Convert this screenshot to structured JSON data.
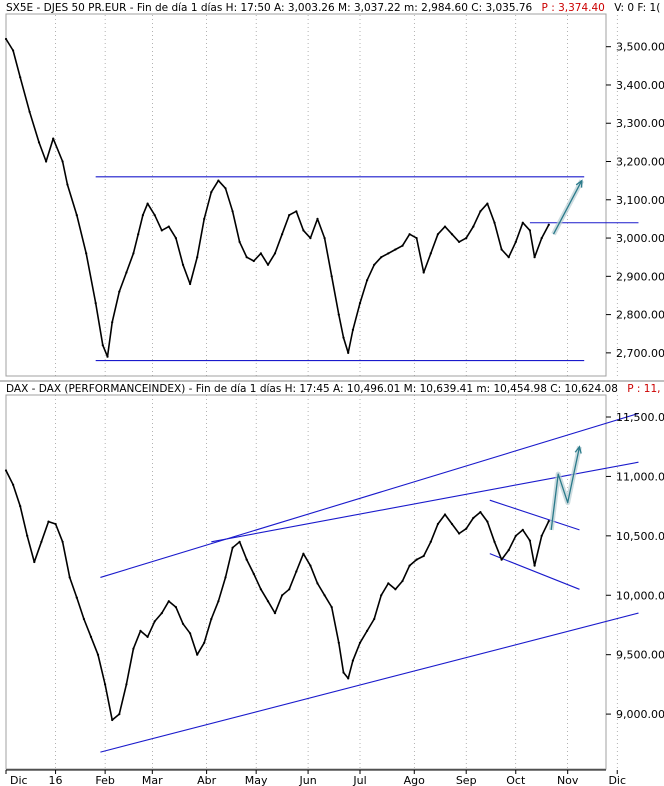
{
  "colors": {
    "background": "#ffffff",
    "price": "#000000",
    "trendline": "#1a1acc",
    "projection": "#2a7a8a",
    "last_price": "#cc0000",
    "grid": "#808080"
  },
  "chart_data": [
    {
      "type": "line",
      "header": {
        "text": "SX5E - DJES 50 PR.EUR - Fin de día 1 días  H: 17:50  A: 3,003.26  M: 3,037.22  m: 2,984.60  C: 3,035.76",
        "last": "P : 3,374.40",
        "tail": "V: 0   F: 1("
      },
      "ylim": [
        2650,
        3575
      ],
      "yticks": [
        2700,
        2800,
        2900,
        3000,
        3100,
        3200,
        3300,
        3400,
        3500
      ],
      "ytick_labels": [
        "2,700.00",
        "2,800.00",
        "2,900.00",
        "3,000.00",
        "3,100.00",
        "3,200.00",
        "3,300.00",
        "3,400.00",
        "3,500.00"
      ],
      "grid": "vertical dotted at month boundaries",
      "series": [
        {
          "points": [
            [
              0,
              3520
            ],
            [
              3,
              3490
            ],
            [
              6,
              3420
            ],
            [
              10,
              3330
            ],
            [
              14,
              3250
            ],
            [
              17,
              3200
            ],
            [
              20,
              3260
            ],
            [
              24,
              3200
            ],
            [
              26,
              3140
            ],
            [
              30,
              3060
            ],
            [
              34,
              2960
            ],
            [
              38,
              2830
            ],
            [
              41,
              2720
            ],
            [
              43,
              2690
            ],
            [
              45,
              2780
            ],
            [
              48,
              2860
            ],
            [
              51,
              2910
            ],
            [
              54,
              2960
            ],
            [
              56,
              3010
            ],
            [
              58,
              3060
            ],
            [
              60,
              3090
            ],
            [
              63,
              3060
            ],
            [
              66,
              3020
            ],
            [
              69,
              3030
            ],
            [
              72,
              3000
            ],
            [
              75,
              2930
            ],
            [
              78,
              2880
            ],
            [
              81,
              2950
            ],
            [
              84,
              3050
            ],
            [
              87,
              3120
            ],
            [
              90,
              3150
            ],
            [
              93,
              3130
            ],
            [
              96,
              3070
            ],
            [
              99,
              2990
            ],
            [
              102,
              2950
            ],
            [
              105,
              2940
            ],
            [
              108,
              2960
            ],
            [
              111,
              2930
            ],
            [
              114,
              2960
            ],
            [
              117,
              3010
            ],
            [
              120,
              3060
            ],
            [
              123,
              3070
            ],
            [
              126,
              3020
            ],
            [
              129,
              3000
            ],
            [
              132,
              3050
            ],
            [
              135,
              3000
            ],
            [
              138,
              2900
            ],
            [
              141,
              2800
            ],
            [
              143,
              2740
            ],
            [
              145,
              2700
            ],
            [
              147,
              2760
            ],
            [
              150,
              2830
            ],
            [
              153,
              2890
            ],
            [
              156,
              2930
            ],
            [
              159,
              2950
            ],
            [
              162,
              2960
            ],
            [
              165,
              2970
            ],
            [
              168,
              2980
            ],
            [
              171,
              3010
            ],
            [
              174,
              3000
            ],
            [
              177,
              2910
            ],
            [
              180,
              2960
            ],
            [
              183,
              3010
            ],
            [
              186,
              3030
            ],
            [
              189,
              3010
            ],
            [
              192,
              2990
            ],
            [
              195,
              3000
            ],
            [
              198,
              3030
            ],
            [
              201,
              3070
            ],
            [
              204,
              3090
            ],
            [
              207,
              3040
            ],
            [
              210,
              2970
            ],
            [
              213,
              2950
            ],
            [
              216,
              2990
            ],
            [
              219,
              3040
            ],
            [
              222,
              3020
            ],
            [
              224,
              2950
            ],
            [
              227,
              3000
            ],
            [
              230,
              3035
            ]
          ]
        }
      ],
      "trendlines": [
        {
          "name": "resistance",
          "from": [
            38,
            3160
          ],
          "to": [
            245,
            3160
          ]
        },
        {
          "name": "support",
          "from": [
            38,
            2680
          ],
          "to": [
            245,
            2680
          ]
        },
        {
          "name": "pivot",
          "from": [
            222,
            3040
          ],
          "to": [
            268,
            3040
          ]
        }
      ],
      "projection": {
        "from": [
          232,
          3010
        ],
        "to": [
          244,
          3150
        ]
      }
    },
    {
      "type": "line",
      "header": {
        "text": "DAX - DAX (PERFORMANCEINDEX) - Fin de día 1 días  H: 17:45  A: 10,496.01  M: 10,639.41  m: 10,454.98  C: 10,624.08",
        "last": "P : 11,"
      },
      "ylim": [
        8580,
        11660
      ],
      "yticks": [
        9000,
        9500,
        10000,
        10500,
        11000,
        11500
      ],
      "ytick_labels": [
        "9,000.00",
        "9,500.00",
        "10,000.00",
        "10,500.00",
        "11,000.00",
        "11,500.00"
      ],
      "grid": "vertical dotted at month boundaries",
      "series": [
        {
          "points": [
            [
              0,
              11050
            ],
            [
              3,
              10930
            ],
            [
              6,
              10750
            ],
            [
              9,
              10500
            ],
            [
              12,
              10280
            ],
            [
              15,
              10450
            ],
            [
              18,
              10620
            ],
            [
              21,
              10600
            ],
            [
              24,
              10450
            ],
            [
              27,
              10150
            ],
            [
              30,
              9980
            ],
            [
              33,
              9800
            ],
            [
              36,
              9650
            ],
            [
              39,
              9500
            ],
            [
              42,
              9250
            ],
            [
              45,
              8950
            ],
            [
              48,
              9000
            ],
            [
              51,
              9250
            ],
            [
              54,
              9550
            ],
            [
              57,
              9700
            ],
            [
              60,
              9650
            ],
            [
              63,
              9780
            ],
            [
              66,
              9850
            ],
            [
              69,
              9950
            ],
            [
              72,
              9900
            ],
            [
              75,
              9760
            ],
            [
              78,
              9680
            ],
            [
              81,
              9500
            ],
            [
              84,
              9600
            ],
            [
              87,
              9800
            ],
            [
              90,
              9950
            ],
            [
              93,
              10150
            ],
            [
              96,
              10400
            ],
            [
              99,
              10450
            ],
            [
              102,
              10300
            ],
            [
              105,
              10180
            ],
            [
              108,
              10050
            ],
            [
              111,
              9950
            ],
            [
              114,
              9850
            ],
            [
              117,
              10000
            ],
            [
              120,
              10050
            ],
            [
              123,
              10200
            ],
            [
              126,
              10350
            ],
            [
              129,
              10250
            ],
            [
              132,
              10100
            ],
            [
              135,
              10000
            ],
            [
              138,
              9900
            ],
            [
              141,
              9600
            ],
            [
              143,
              9350
            ],
            [
              145,
              9300
            ],
            [
              147,
              9450
            ],
            [
              150,
              9600
            ],
            [
              153,
              9700
            ],
            [
              156,
              9800
            ],
            [
              159,
              10000
            ],
            [
              162,
              10100
            ],
            [
              165,
              10050
            ],
            [
              168,
              10120
            ],
            [
              171,
              10250
            ],
            [
              174,
              10300
            ],
            [
              177,
              10330
            ],
            [
              180,
              10450
            ],
            [
              183,
              10600
            ],
            [
              186,
              10680
            ],
            [
              189,
              10600
            ],
            [
              192,
              10520
            ],
            [
              195,
              10560
            ],
            [
              198,
              10650
            ],
            [
              201,
              10700
            ],
            [
              204,
              10620
            ],
            [
              207,
              10450
            ],
            [
              210,
              10300
            ],
            [
              213,
              10380
            ],
            [
              216,
              10500
            ],
            [
              219,
              10550
            ],
            [
              222,
              10460
            ],
            [
              224,
              10250
            ],
            [
              227,
              10500
            ],
            [
              230,
              10624
            ]
          ]
        }
      ],
      "trendlines": [
        {
          "name": "upper-channel",
          "from": [
            40,
            10150
          ],
          "to": [
            268,
            11530
          ]
        },
        {
          "name": "lower-channel",
          "from": [
            40,
            8680
          ],
          "to": [
            268,
            9850
          ]
        },
        {
          "name": "mid-line",
          "from": [
            87,
            10450
          ],
          "to": [
            268,
            11120
          ]
        },
        {
          "name": "flag-top",
          "from": [
            205,
            10800
          ],
          "to": [
            243,
            10550
          ]
        },
        {
          "name": "flag-bottom",
          "from": [
            205,
            10350
          ],
          "to": [
            243,
            10050
          ]
        }
      ],
      "projection": {
        "path": [
          [
            231,
            10550
          ],
          [
            234,
            11020
          ],
          [
            238,
            10780
          ],
          [
            243,
            11250
          ]
        ]
      }
    }
  ],
  "x_axis": {
    "labels": [
      "Dic",
      "16",
      "Feb",
      "Mar",
      "Abr",
      "May",
      "Jun",
      "Jul",
      "Ago",
      "Sep",
      "Oct",
      "Nov",
      "Dic"
    ],
    "positions": [
      0,
      21,
      42,
      62,
      85,
      106,
      128,
      150,
      173,
      195,
      216,
      238,
      259
    ]
  }
}
